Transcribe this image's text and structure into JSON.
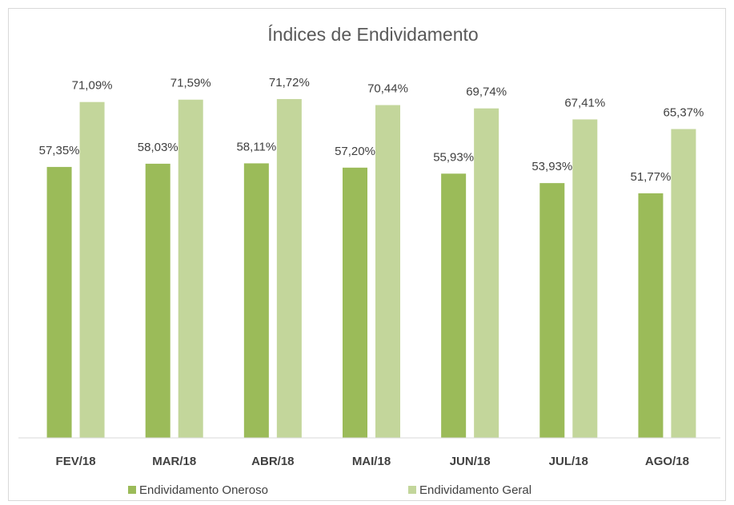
{
  "chart_data": {
    "type": "bar",
    "title": "Índices de Endividamento",
    "categories": [
      "FEV/18",
      "MAR/18",
      "ABR/18",
      "MAI/18",
      "JUN/18",
      "JUL/18",
      "AGO/18"
    ],
    "series": [
      {
        "name": "Endividamento Oneroso",
        "color": "#9bbb59",
        "values": [
          57.35,
          58.03,
          58.11,
          57.2,
          55.93,
          53.93,
          51.77
        ],
        "value_labels": [
          "57,35%",
          "58,03%",
          "58,11%",
          "57,20%",
          "55,93%",
          "53,93%",
          "51,77%"
        ]
      },
      {
        "name": "Endividamento Geral",
        "color": "#c3d69b",
        "values": [
          71.09,
          71.59,
          71.72,
          70.44,
          69.74,
          67.41,
          65.37
        ],
        "value_labels": [
          "71,09%",
          "71,59%",
          "71,72%",
          "70,44%",
          "69,74%",
          "67,41%",
          "65,37%"
        ]
      }
    ],
    "ylim": [
      0,
      80
    ],
    "legend": "bottom"
  }
}
